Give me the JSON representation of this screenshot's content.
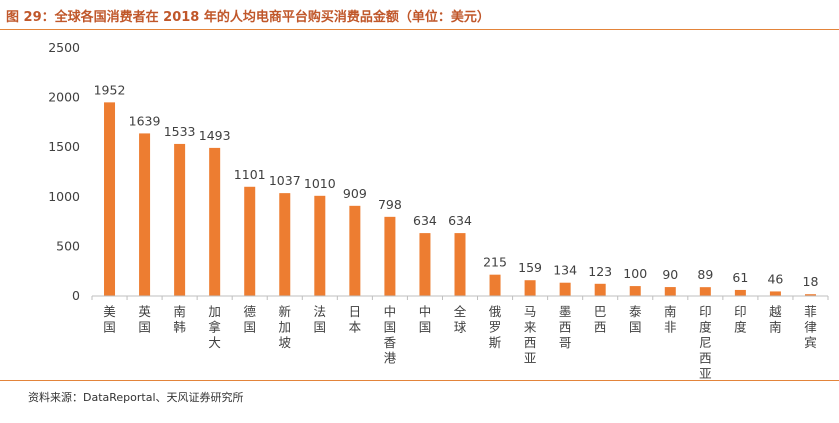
{
  "header": {
    "title": "图 29：全球各国消费者在 2018 年的人均电商平台购买消费品金额（单位：美元）"
  },
  "footer": {
    "source": "资料来源：DataReportal、天风证券研究所"
  },
  "chart_data": {
    "type": "bar",
    "title": "",
    "xlabel": "",
    "ylabel": "",
    "ylim": [
      0,
      2500
    ],
    "yticks": [
      0,
      500,
      1000,
      1500,
      2000,
      2500
    ],
    "grid": false,
    "legend": "none",
    "bar_color": "#ED7D31",
    "categories": [
      "美国",
      "英国",
      "南韩",
      "加拿大",
      "德国",
      "新加坡",
      "法国",
      "日本",
      "中国香港",
      "中国",
      "全球",
      "俄罗斯",
      "马来西亚",
      "墨西哥",
      "巴西",
      "泰国",
      "南非",
      "印度尼西亚",
      "印度",
      "越南",
      "菲律宾"
    ],
    "values": [
      1952,
      1639,
      1533,
      1493,
      1101,
      1037,
      1010,
      909,
      798,
      634,
      634,
      215,
      159,
      134,
      123,
      100,
      90,
      89,
      61,
      46,
      18
    ]
  }
}
